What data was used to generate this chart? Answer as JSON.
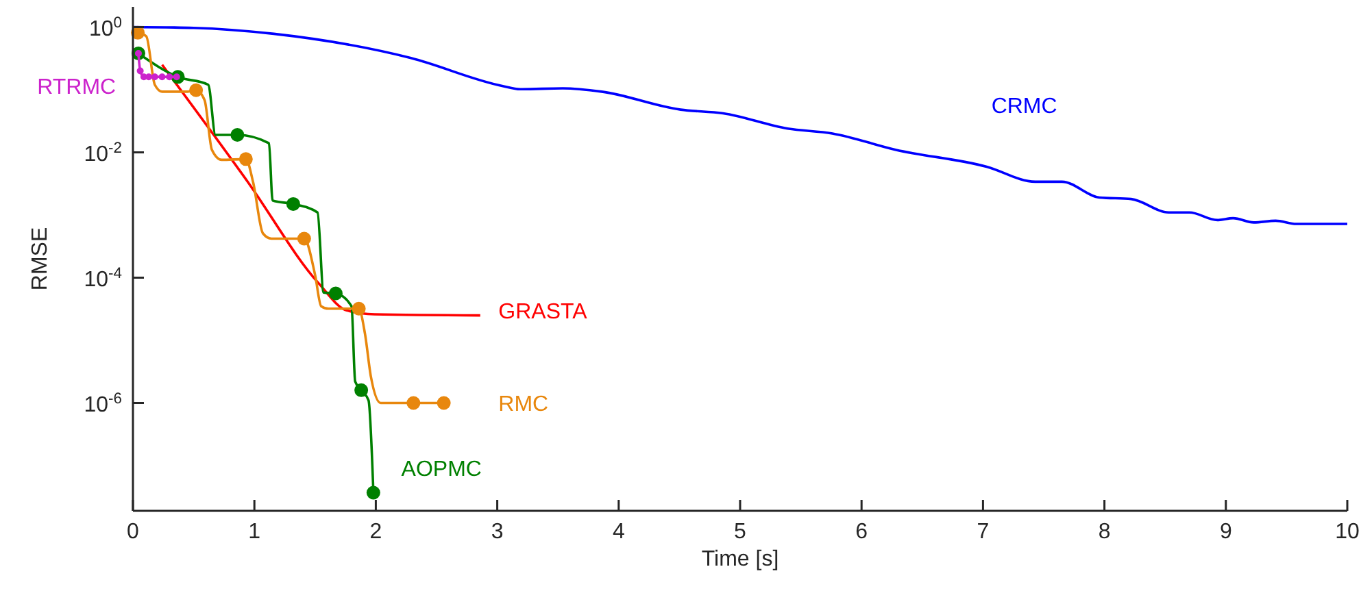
{
  "chart_data": {
    "type": "line",
    "xlabel": "Time [s]",
    "ylabel": "RMSE",
    "log": "y",
    "grid": false,
    "xlim": [
      0,
      10
    ],
    "xticks": [
      0,
      1,
      2,
      3,
      4,
      5,
      6,
      7,
      8,
      9,
      10
    ],
    "ylim": [
      1.9e-08,
      2.1
    ],
    "yticks": [
      {
        "value": 1,
        "label": "10$^{0}$"
      },
      {
        "value": 0.01,
        "label": "10$^{-2}$"
      },
      {
        "value": 0.0001,
        "label": "10$^{-4}$"
      },
      {
        "value": 1e-06,
        "label": "10$^{-6}$"
      }
    ],
    "series": [
      {
        "name": "CRMC",
        "color": "#0000ff",
        "marker": "none",
        "x": [
          0,
          0.5,
          1.16,
          2.29,
          3.04,
          3.19,
          3.54,
          3.86,
          4.51,
          4.86,
          5.39,
          5.76,
          6.28,
          7.03,
          7.43,
          7.65,
          7.96,
          8.22,
          8.53,
          8.7,
          8.93,
          9.06,
          9.23,
          9.41,
          9.58,
          10
        ],
        "values": [
          1.0,
          0.97,
          0.78,
          0.32,
          0.115,
          0.102,
          0.105,
          0.093,
          0.048,
          0.042,
          0.024,
          0.02,
          0.011,
          0.0059,
          0.0034,
          0.0034,
          0.0019,
          0.0018,
          0.0011,
          0.0011,
          0.00083,
          0.00089,
          0.00076,
          0.00081,
          0.00072,
          0.00072
        ]
      },
      {
        "name": "GRASTA",
        "color": "#ff0000",
        "marker": "none",
        "x": [
          0.24,
          0.94,
          1.53,
          1.76,
          1.99,
          2.86
        ],
        "values": [
          0.25,
          0.0035,
          8.1e-05,
          3e-05,
          2.6e-05,
          2.5e-05
        ]
      },
      {
        "name": "AOPMC",
        "color": "#008000",
        "marker": "none",
        "x": [
          0.045,
          0.37,
          0.62,
          0.68,
          0.86,
          1.12,
          1.15,
          1.32,
          1.52,
          1.57,
          1.67,
          1.8,
          1.83,
          1.88,
          1.94,
          1.98
        ],
        "values": [
          0.38,
          0.16,
          0.12,
          0.019,
          0.019,
          0.014,
          0.0017,
          0.0015,
          0.0011,
          5.8e-05,
          5.6e-05,
          3.5e-05,
          2.2e-06,
          1.6e-06,
          1.1e-06,
          3.7e-08
        ]
      },
      {
        "type": "scatter",
        "color": "#008000",
        "marker": "circle",
        "x": [
          0.045,
          0.37,
          0.86,
          1.32,
          1.67,
          1.88,
          1.98
        ],
        "values": [
          0.38,
          0.16,
          0.019,
          0.0015,
          5.6e-05,
          1.6e-06,
          3.7e-08
        ]
      },
      {
        "name": "RMC",
        "color": "#e8870d",
        "marker": "none",
        "x": [
          0.04,
          0.11,
          0.18,
          0.24,
          0.45,
          0.52,
          0.59,
          0.65,
          0.73,
          0.93,
          0.99,
          1.07,
          1.14,
          1.41,
          1.5,
          1.55,
          1.61,
          1.86,
          1.91,
          1.96,
          2.04,
          2.31,
          2.56
        ],
        "values": [
          0.81,
          0.71,
          0.12,
          0.093,
          0.093,
          0.098,
          0.068,
          0.011,
          0.0076,
          0.0078,
          0.0033,
          0.00051,
          0.00042,
          0.00042,
          0.00011,
          3.5e-05,
          3.2e-05,
          3.2e-05,
          1.3e-05,
          2.6e-06,
          1e-06,
          1e-06,
          1e-06
        ]
      },
      {
        "type": "scatter",
        "color": "#e8870d",
        "marker": "circle",
        "x": [
          0.04,
          0.52,
          0.93,
          1.41,
          1.86,
          2.31,
          2.56
        ],
        "values": [
          0.81,
          0.098,
          0.0078,
          0.00042,
          3.2e-05,
          1e-06,
          1e-06
        ]
      },
      {
        "name": "RTRMC",
        "color": "#cc22cc",
        "marker": "circle",
        "x": [
          0.045,
          0.06,
          0.09,
          0.13,
          0.18,
          0.24,
          0.3,
          0.36
        ],
        "values": [
          0.38,
          0.2,
          0.16,
          0.16,
          0.16,
          0.16,
          0.16,
          0.16
        ]
      }
    ]
  }
}
